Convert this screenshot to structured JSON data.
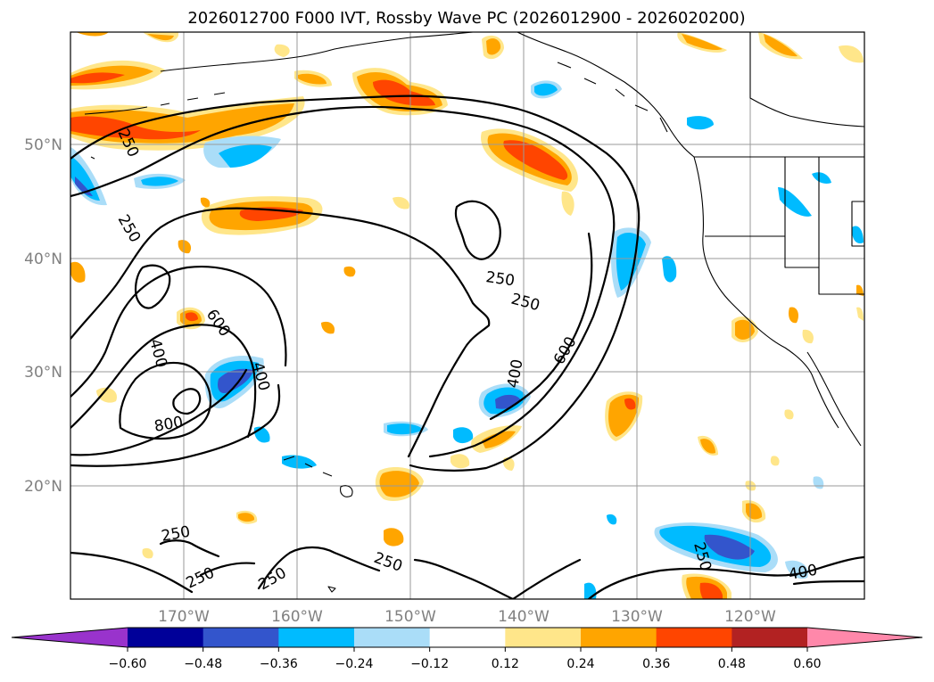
{
  "title": "2026012700 F000 IVT, Rossby Wave PC (2026012900 - 2026020200)",
  "lat_labels": [
    "50°N",
    "40°N",
    "30°N",
    "20°N"
  ],
  "lon_labels": [
    "170°W",
    "160°W",
    "150°W",
    "140°W",
    "130°W",
    "120°W"
  ],
  "colorbar": {
    "ticks": [
      "−0.60",
      "−0.48",
      "−0.36",
      "−0.24",
      "−0.12",
      "0.12",
      "0.24",
      "0.36",
      "0.48",
      "0.60"
    ],
    "colors": [
      "#9933cc",
      "#000099",
      "#3355cc",
      "#00bbff",
      "#aaddf8",
      "#ffffff",
      "#ffe68a",
      "#ffa500",
      "#ff4500",
      "#b22222",
      "#ff88aa"
    ]
  },
  "contour_labels": {
    "c250_a": "250",
    "c250_b": "250",
    "c250_c": "250",
    "c250_d": "250",
    "c250_e": "250",
    "c250_f": "250",
    "c250_g": "250",
    "c250_h": "250",
    "c400_a": "400",
    "c400_b": "400",
    "c400_c": "400",
    "c400_d": "400",
    "c600_a": "600",
    "c600_b": "600",
    "c800_a": "800"
  },
  "chart_data": {
    "type": "map",
    "projection": "PlateCarree",
    "extent_lon": [
      -180,
      -110
    ],
    "extent_lat": [
      10,
      60
    ],
    "grid": true,
    "contour_field": "IVT",
    "contour_levels": [
      250,
      400,
      600,
      800
    ],
    "filled_field": "Rossby Wave PC",
    "filled_levels": [
      -0.6,
      -0.48,
      -0.36,
      -0.24,
      -0.12,
      0.12,
      0.24,
      0.36,
      0.48,
      0.6
    ]
  }
}
